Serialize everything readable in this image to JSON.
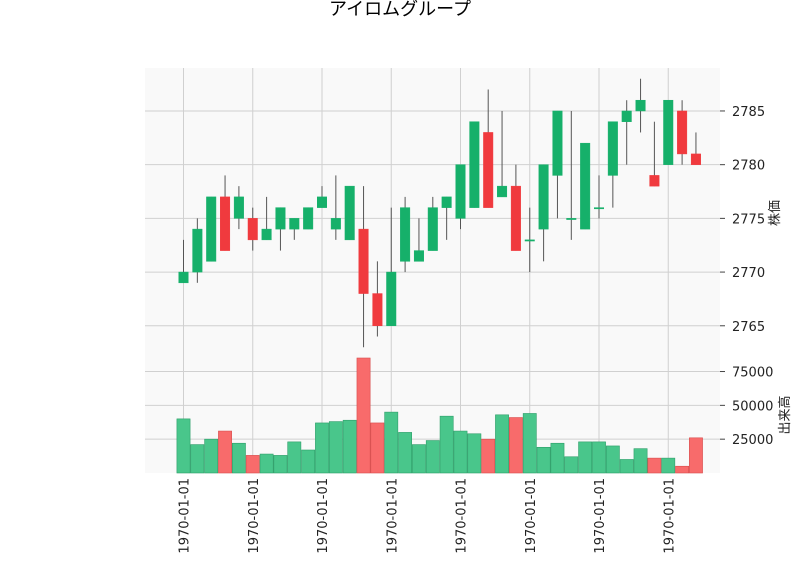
{
  "chart_data": [
    {
      "type": "candlestick",
      "title": "アイロムグループ",
      "ylabel": "株価",
      "ylim": [
        2762,
        2789
      ],
      "yticks": [
        2765,
        2770,
        2775,
        2780,
        2785
      ],
      "xtick_labels": [
        "1970-01-01",
        "1970-01-01",
        "1970-01-01",
        "1970-01-01",
        "1970-01-01",
        "1970-01-01",
        "1970-01-01",
        "1970-01-01"
      ],
      "xtick_positions": [
        0,
        5,
        10,
        15,
        20,
        25,
        30,
        35
      ],
      "grid": true,
      "up_color": "#16b06a",
      "down_color": "#f03a3e",
      "open": [
        2769,
        2770,
        2771,
        2777,
        2775,
        2775,
        2773,
        2774,
        2774,
        2774,
        2776,
        2774,
        2773,
        2774,
        2768,
        2765,
        2771,
        2771,
        2772,
        2776,
        2775,
        2776,
        2783,
        2777,
        2778,
        2773,
        2774,
        2779,
        2775,
        2774,
        2776,
        2779,
        2784,
        2785,
        2779,
        2780,
        2785,
        2781
      ],
      "high": [
        2773,
        2775,
        2777,
        2779,
        2778,
        2776,
        2777,
        2776,
        2775,
        2776,
        2778,
        2779,
        2778,
        2778,
        2771,
        2776,
        2777,
        2775,
        2777,
        2777,
        2780,
        2784,
        2787,
        2785,
        2780,
        2776,
        2780,
        2785,
        2785,
        2782,
        2779,
        2784,
        2786,
        2788,
        2784,
        2786,
        2786,
        2783
      ],
      "low": [
        2769,
        2769,
        2771,
        2772,
        2774,
        2772,
        2773,
        2772,
        2773,
        2774,
        2776,
        2773,
        2773,
        2763,
        2764,
        2765,
        2770,
        2771,
        2772,
        2773,
        2774,
        2776,
        2776,
        2777,
        2772,
        2770,
        2771,
        2775,
        2773,
        2774,
        2775,
        2776,
        2780,
        2783,
        2778,
        2780,
        2780,
        2780
      ],
      "close": [
        2770,
        2774,
        2777,
        2772,
        2777,
        2773,
        2774,
        2776,
        2775,
        2776,
        2777,
        2775,
        2778,
        2768,
        2765,
        2770,
        2776,
        2772,
        2776,
        2777,
        2780,
        2784,
        2776,
        2778,
        2772,
        2773,
        2780,
        2785,
        2775,
        2782,
        2776,
        2784,
        2785,
        2786,
        2778,
        2786,
        2781,
        2780
      ]
    },
    {
      "type": "bar",
      "ylabel": "出来高",
      "ylim": [
        0,
        85000
      ],
      "yticks": [
        25000,
        50000,
        75000
      ],
      "volume": [
        40000,
        21000,
        25000,
        31000,
        22000,
        13000,
        14000,
        13000,
        23000,
        17000,
        37000,
        38000,
        39000,
        86000,
        37000,
        45000,
        30000,
        21000,
        24000,
        42000,
        31000,
        29000,
        25000,
        43000,
        41000,
        44000,
        19000,
        22000,
        12000,
        23000,
        23000,
        20000,
        10000,
        18000,
        11000,
        11000,
        5000,
        26000
      ]
    }
  ]
}
